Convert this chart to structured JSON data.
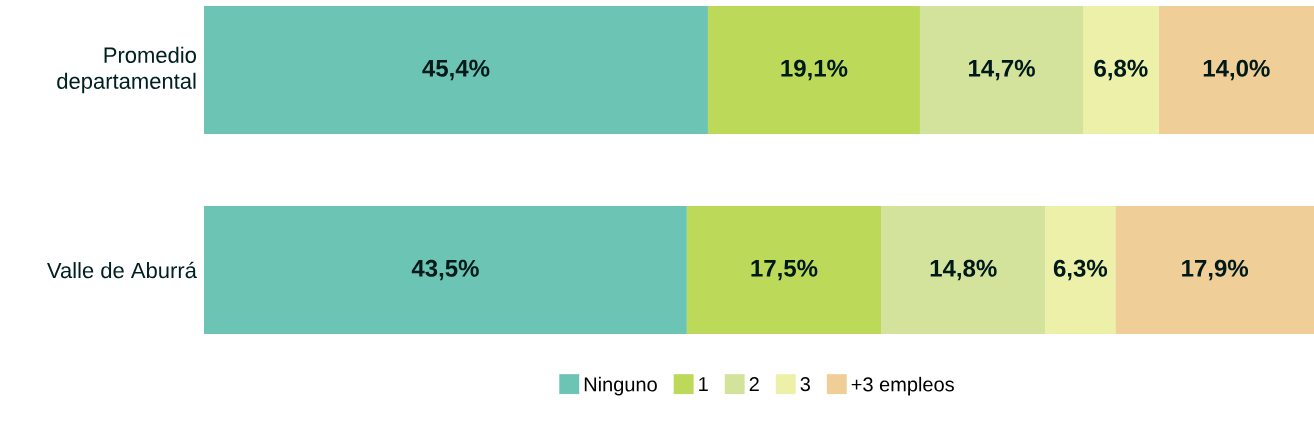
{
  "chart_data": {
    "type": "bar",
    "orientation": "horizontal",
    "stacked": true,
    "categories": [
      "Promedio departamental",
      "Valle de Aburrá"
    ],
    "series": [
      {
        "name": "Ninguno",
        "color": "#6cc4b5",
        "values": [
          45.4,
          43.5
        ],
        "value_labels": [
          "45,4%",
          "43,5%"
        ]
      },
      {
        "name": "1",
        "color": "#bcd95a",
        "values": [
          19.1,
          17.5
        ],
        "value_labels": [
          "19,1%",
          "17,5%"
        ]
      },
      {
        "name": "2",
        "color": "#d4e39c",
        "values": [
          14.7,
          14.8
        ],
        "value_labels": [
          "14,7%",
          "14,8%"
        ]
      },
      {
        "name": "3",
        "color": "#edf0a8",
        "values": [
          6.8,
          6.3
        ],
        "value_labels": [
          "6,8%",
          "6,3%"
        ]
      },
      {
        "name": "+3 empleos",
        "color": "#efce98",
        "values": [
          14.0,
          17.9
        ],
        "value_labels": [
          "14,0%",
          "17,9%"
        ]
      }
    ],
    "xlim": [
      0,
      100
    ],
    "tick_labels": "y",
    "legend": "bottom"
  }
}
